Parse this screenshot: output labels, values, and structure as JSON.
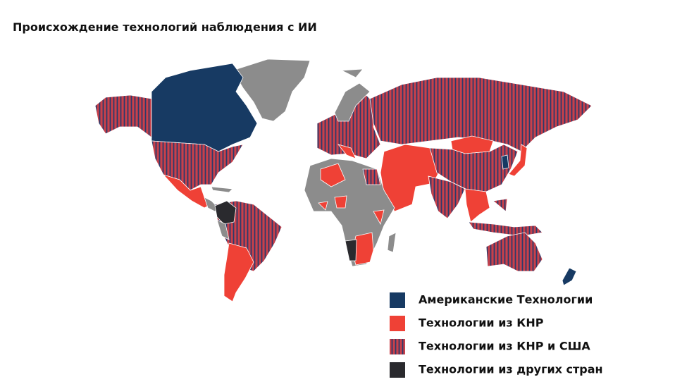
{
  "title": "Происхождение технологий наблюдения с ИИ",
  "legend": [
    {
      "label": "Американские Технологии",
      "color": "#173a63"
    },
    {
      "label": "Технологии из КНР",
      "color": "#ef4136"
    },
    {
      "label": "Технологии из КНР и США",
      "color": "#c9404a",
      "stripe_color": "#2b3a6b"
    },
    {
      "label": "Технологии из других стран",
      "color": "#2a2a2e"
    }
  ]
}
